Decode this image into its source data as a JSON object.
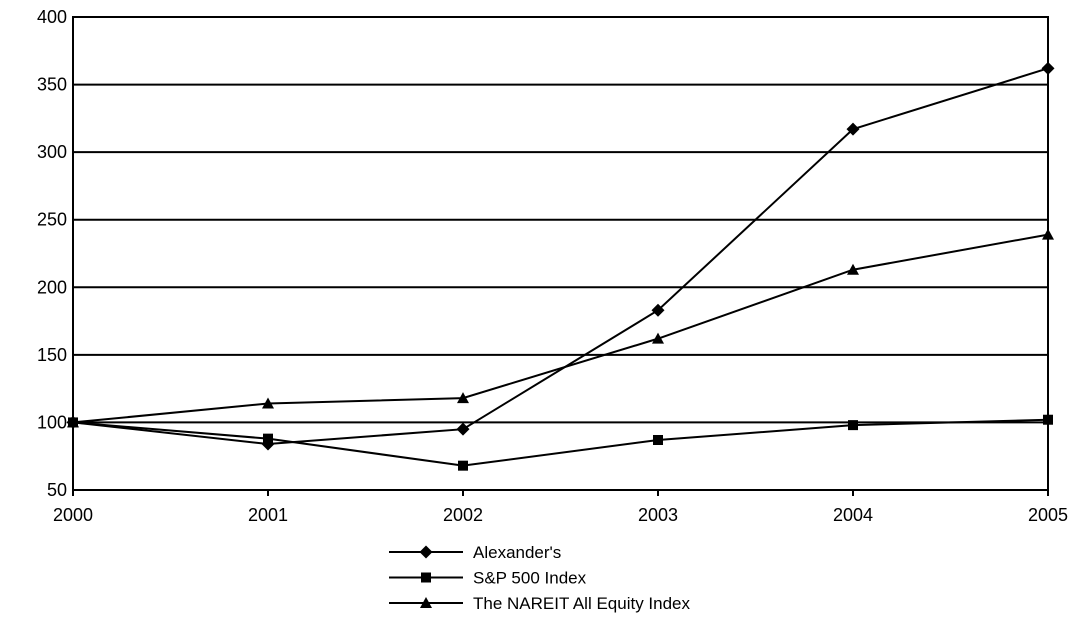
{
  "chart_data": {
    "type": "line",
    "title": "",
    "xlabel": "",
    "ylabel": "",
    "x": [
      "2000",
      "2001",
      "2002",
      "2003",
      "2004",
      "2005"
    ],
    "ylim": [
      50,
      400
    ],
    "yticks": [
      50,
      100,
      150,
      200,
      250,
      300,
      350,
      400
    ],
    "grid": "horizontal",
    "legend_position": "bottom",
    "series": [
      {
        "name": "Alexander's",
        "marker": "diamond",
        "values": [
          100,
          84,
          95,
          183,
          317,
          362
        ]
      },
      {
        "name": "S&P 500 Index",
        "marker": "square",
        "values": [
          100,
          88,
          68,
          87,
          98,
          102
        ]
      },
      {
        "name": "The NAREIT All Equity Index",
        "marker": "triangle",
        "values": [
          100,
          114,
          118,
          162,
          213,
          239
        ]
      }
    ]
  }
}
